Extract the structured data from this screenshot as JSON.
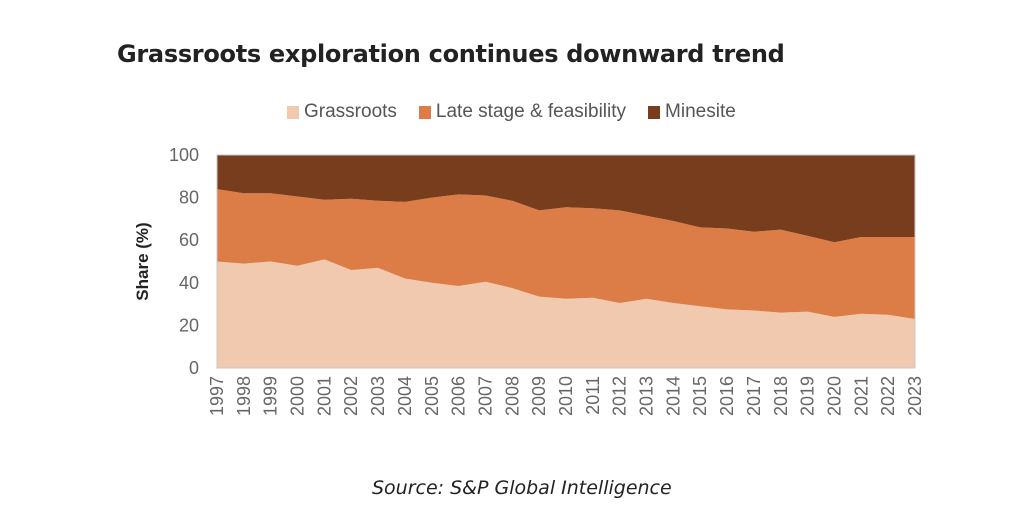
{
  "chart_data": {
    "type": "area",
    "stacked": true,
    "normalized": true,
    "title": "Grassroots exploration continues downward trend",
    "xlabel": "",
    "ylabel": "Share (%)",
    "ylim": [
      0,
      100
    ],
    "yticks": [
      0,
      20,
      40,
      60,
      80,
      100
    ],
    "grid": false,
    "legend_position": "top-center",
    "categories": [
      "1997",
      "1998",
      "1999",
      "2000",
      "2001",
      "2002",
      "2003",
      "2004",
      "2005",
      "2006",
      "2007",
      "2008",
      "2009",
      "2010",
      "2011",
      "2012",
      "2013",
      "2014",
      "2015",
      "2016",
      "2017",
      "2018",
      "2019",
      "2020",
      "2021",
      "2022",
      "2023"
    ],
    "series": [
      {
        "name": "Grassroots",
        "color": "#f0c9ae",
        "values": [
          50,
          49,
          50,
          48,
          51,
          46,
          47,
          42,
          40,
          38.5,
          40.5,
          37.5,
          33.5,
          32.5,
          33,
          30.5,
          32.5,
          30.5,
          29,
          27.5,
          27,
          26,
          26.5,
          24,
          25.5,
          25,
          23
        ]
      },
      {
        "name": "Late stage & feasibility",
        "color": "#dc7d47",
        "values": [
          34,
          33,
          32,
          32.5,
          28,
          33.5,
          31.5,
          36,
          40,
          43,
          40.5,
          41,
          40.5,
          43,
          42,
          43.5,
          39,
          38.5,
          37,
          38,
          37,
          39,
          35.5,
          35,
          36,
          36.5,
          38.5
        ]
      },
      {
        "name": "Minesite",
        "color": "#773d1c",
        "values": [
          16,
          18,
          18,
          19.5,
          21,
          20.5,
          21.5,
          22,
          20,
          18.5,
          19,
          21.5,
          26,
          24.5,
          25,
          26,
          28.5,
          31,
          34,
          34.5,
          36,
          35,
          38,
          41,
          38.5,
          38.5,
          38.5
        ]
      }
    ],
    "source": "Source: S&P Global Intelligence"
  },
  "legend": [
    {
      "label": "Grassroots",
      "color": "#f0c9ae"
    },
    {
      "label": "Late stage & feasibility",
      "color": "#dc7d47"
    },
    {
      "label": "Minesite",
      "color": "#773d1c"
    }
  ]
}
